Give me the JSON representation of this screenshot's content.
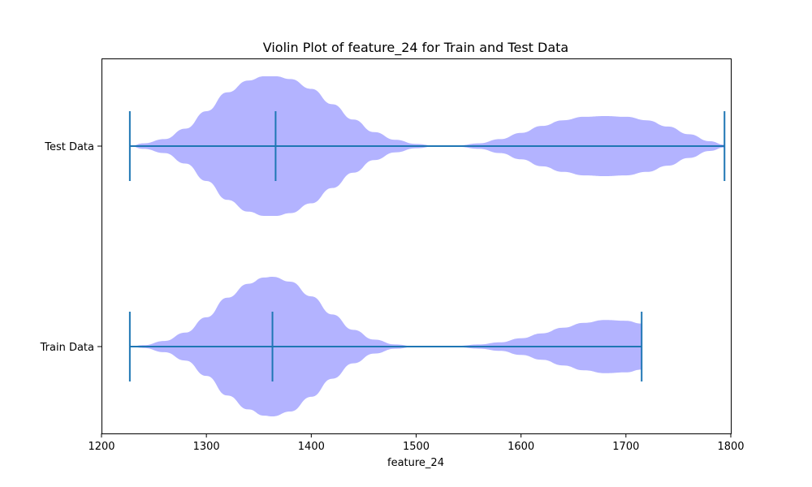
{
  "chart_data": {
    "type": "violin",
    "orientation": "horizontal",
    "title": "Violin Plot of feature_24 for Train and Test Data",
    "xlabel": "feature_24",
    "ylabel": "",
    "xlim": [
      1200,
      1800
    ],
    "xticks": [
      1200,
      1300,
      1400,
      1500,
      1600,
      1700,
      1800
    ],
    "fill_color": "#b3b3ff",
    "line_color": "#1f77b4",
    "grid": false,
    "series": [
      {
        "name": "Test Data",
        "min": 1227,
        "max": 1794,
        "median": 1366,
        "profile": [
          [
            1227,
            0.0
          ],
          [
            1240,
            0.04
          ],
          [
            1260,
            0.1
          ],
          [
            1280,
            0.25
          ],
          [
            1300,
            0.5
          ],
          [
            1320,
            0.77
          ],
          [
            1340,
            0.94
          ],
          [
            1355,
            1.0
          ],
          [
            1366,
            1.0
          ],
          [
            1380,
            0.96
          ],
          [
            1400,
            0.82
          ],
          [
            1420,
            0.6
          ],
          [
            1440,
            0.38
          ],
          [
            1460,
            0.2
          ],
          [
            1480,
            0.09
          ],
          [
            1500,
            0.03
          ],
          [
            1520,
            0.0
          ],
          [
            1540,
            0.01
          ],
          [
            1560,
            0.04
          ],
          [
            1580,
            0.1
          ],
          [
            1600,
            0.19
          ],
          [
            1620,
            0.29
          ],
          [
            1640,
            0.37
          ],
          [
            1660,
            0.42
          ],
          [
            1680,
            0.43
          ],
          [
            1700,
            0.42
          ],
          [
            1720,
            0.37
          ],
          [
            1740,
            0.28
          ],
          [
            1760,
            0.17
          ],
          [
            1780,
            0.07
          ],
          [
            1794,
            0.02
          ]
        ]
      },
      {
        "name": "Train Data",
        "min": 1227,
        "max": 1715,
        "median": 1363,
        "profile": [
          [
            1227,
            0.0
          ],
          [
            1240,
            0.02
          ],
          [
            1260,
            0.08
          ],
          [
            1280,
            0.2
          ],
          [
            1300,
            0.42
          ],
          [
            1320,
            0.7
          ],
          [
            1340,
            0.9
          ],
          [
            1355,
            0.99
          ],
          [
            1363,
            1.0
          ],
          [
            1380,
            0.93
          ],
          [
            1400,
            0.72
          ],
          [
            1420,
            0.46
          ],
          [
            1440,
            0.24
          ],
          [
            1460,
            0.1
          ],
          [
            1480,
            0.03
          ],
          [
            1500,
            0.0
          ],
          [
            1520,
            0.0
          ],
          [
            1540,
            0.01
          ],
          [
            1560,
            0.03
          ],
          [
            1580,
            0.06
          ],
          [
            1600,
            0.12
          ],
          [
            1620,
            0.19
          ],
          [
            1640,
            0.27
          ],
          [
            1660,
            0.34
          ],
          [
            1680,
            0.38
          ],
          [
            1700,
            0.37
          ],
          [
            1715,
            0.33
          ]
        ]
      }
    ]
  }
}
